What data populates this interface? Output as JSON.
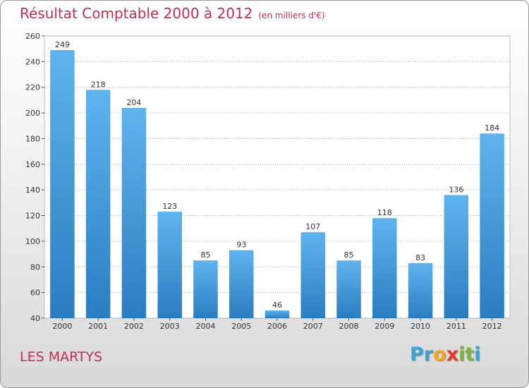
{
  "header": {
    "title": "Résultat Comptable 2000 à 2012",
    "subtitle": "(en milliers d'€)"
  },
  "footer": {
    "location": "LES MARTYS",
    "brand_letters": [
      {
        "ch": "P",
        "color": "#3aa3d8"
      },
      {
        "ch": "r",
        "color": "#3aa3d8"
      },
      {
        "ch": "o",
        "color": "#f5a623"
      },
      {
        "ch": "x",
        "color": "#e53935"
      },
      {
        "ch": "i",
        "color": "#7cb342"
      },
      {
        "ch": "t",
        "color": "#7cb342"
      },
      {
        "ch": "i",
        "color": "#3aa3d8"
      }
    ]
  },
  "colors": {
    "title": "#c0304f",
    "bar_light": "#5fb4ee",
    "bar_dark": "#2a7dc0",
    "grid": "#aaaaaa",
    "plot_bg": "#ffffff"
  },
  "chart_data": {
    "type": "bar",
    "title": "Résultat Comptable 2000 à 2012",
    "subtitle": "(en milliers d'€)",
    "xlabel": "",
    "ylabel": "",
    "categories": [
      "2000",
      "2001",
      "2002",
      "2003",
      "2004",
      "2005",
      "2006",
      "2007",
      "2008",
      "2009",
      "2010",
      "2011",
      "2012"
    ],
    "values": [
      249,
      218,
      204,
      123,
      85,
      93,
      46,
      107,
      85,
      118,
      83,
      136,
      184
    ],
    "data_labels": [
      "249",
      "218",
      "204",
      "123",
      "85",
      "93",
      "46",
      "107",
      "85",
      "118",
      "83",
      "136",
      "184"
    ],
    "ylim": [
      40,
      260
    ],
    "yticks": [
      40,
      60,
      80,
      100,
      120,
      140,
      160,
      180,
      200,
      220,
      240,
      260
    ],
    "ytick_labels": [
      "40",
      "60",
      "80",
      "100",
      "120",
      "140",
      "160",
      "180",
      "200",
      "220",
      "240",
      "260"
    ],
    "grid": true,
    "legend": "none"
  }
}
